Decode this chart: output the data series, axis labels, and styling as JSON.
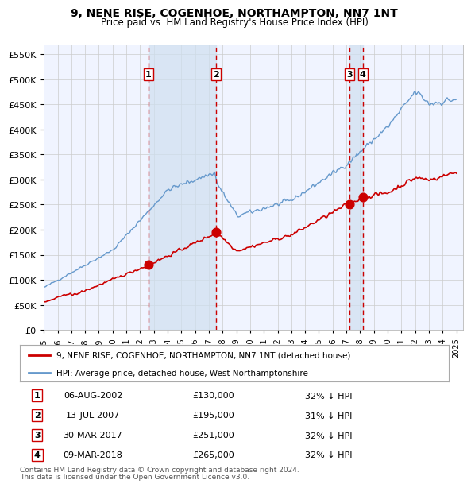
{
  "title": "9, NENE RISE, COGENHOE, NORTHAMPTON, NN7 1NT",
  "subtitle": "Price paid vs. HM Land Registry's House Price Index (HPI)",
  "legend_red": "9, NENE RISE, COGENHOE, NORTHAMPTON, NN7 1NT (detached house)",
  "legend_blue": "HPI: Average price, detached house, West Northamptonshire",
  "footer1": "Contains HM Land Registry data © Crown copyright and database right 2024.",
  "footer2": "This data is licensed under the Open Government Licence v3.0.",
  "transactions": [
    {
      "num": 1,
      "date": "06-AUG-2002",
      "price": 130000,
      "pct": "32%",
      "x_year": 2002.6
    },
    {
      "num": 2,
      "date": "13-JUL-2007",
      "price": 195000,
      "pct": "31%",
      "x_year": 2007.53
    },
    {
      "num": 3,
      "date": "30-MAR-2017",
      "price": 251000,
      "pct": "32%",
      "x_year": 2017.24
    },
    {
      "num": 4,
      "date": "09-MAR-2018",
      "price": 265000,
      "pct": "32%",
      "x_year": 2018.19
    }
  ],
  "ylim": [
    0,
    570000
  ],
  "yticks": [
    0,
    50000,
    100000,
    150000,
    200000,
    250000,
    300000,
    350000,
    400000,
    450000,
    500000,
    550000
  ],
  "xlim_start": 1995.0,
  "xlim_end": 2025.5,
  "background_color": "#ffffff",
  "plot_bg_color": "#f0f4ff",
  "shade_color": "#d0e0f0",
  "red_color": "#cc0000",
  "blue_color": "#6699cc",
  "grid_color": "#cccccc"
}
